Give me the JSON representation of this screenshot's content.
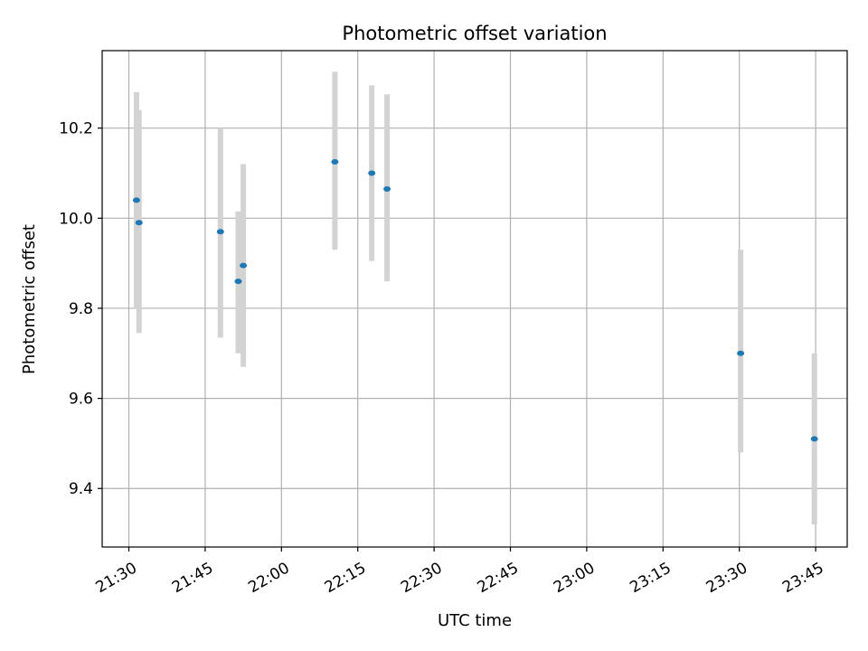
{
  "chart_data": {
    "type": "scatter",
    "title": "Photometric offset variation",
    "xlabel": "UTC time",
    "ylabel": "Photometric offset",
    "x_tick_labels": [
      "21:30",
      "21:45",
      "22:00",
      "22:15",
      "22:30",
      "22:45",
      "23:00",
      "23:15",
      "23:30",
      "23:45"
    ],
    "y_ticks": [
      9.4,
      9.6,
      9.8,
      10.0,
      10.2
    ],
    "y_tick_labels": [
      "9.4",
      "9.6",
      "9.8",
      "10.0",
      "10.2"
    ],
    "ylim": [
      9.27,
      10.372
    ],
    "grid": true,
    "colors": {
      "point": "#1f77b4",
      "errorbar": "#d3d3d3",
      "grid": "#b0b0b0"
    },
    "points": [
      {
        "time": "21:31:30",
        "y": 10.04,
        "ylow": 9.8,
        "yhigh": 10.28
      },
      {
        "time": "21:32:00",
        "y": 9.99,
        "ylow": 9.745,
        "yhigh": 10.24
      },
      {
        "time": "21:48:00",
        "y": 9.97,
        "ylow": 9.735,
        "yhigh": 10.2
      },
      {
        "time": "21:51:30",
        "y": 9.86,
        "ylow": 9.7,
        "yhigh": 10.015
      },
      {
        "time": "21:52:30",
        "y": 9.895,
        "ylow": 9.67,
        "yhigh": 10.12
      },
      {
        "time": "22:10:30",
        "y": 10.125,
        "ylow": 9.93,
        "yhigh": 10.325
      },
      {
        "time": "22:17:45",
        "y": 10.1,
        "ylow": 9.905,
        "yhigh": 10.295
      },
      {
        "time": "22:20:45",
        "y": 10.065,
        "ylow": 9.86,
        "yhigh": 10.275
      },
      {
        "time": "23:30:15",
        "y": 9.7,
        "ylow": 9.48,
        "yhigh": 9.93
      },
      {
        "time": "23:44:45",
        "y": 9.51,
        "ylow": 9.32,
        "yhigh": 9.7
      }
    ]
  }
}
